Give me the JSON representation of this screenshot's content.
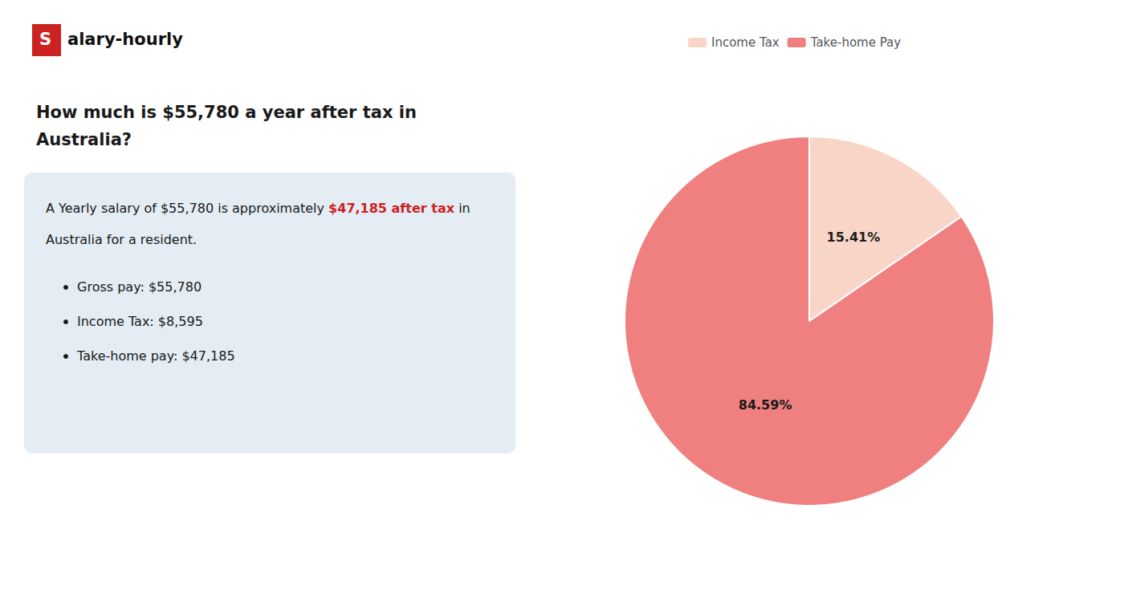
{
  "chart_data": {
    "type": "pie",
    "title": "How much is $55,780 a year after tax in\nAustralia?",
    "categories": [
      "Income Tax",
      "Take-home Pay"
    ],
    "values": [
      15.41,
      84.59
    ],
    "value_labels": [
      "15.41%",
      "84.59%"
    ],
    "colors": [
      "#f9d5c8",
      "#f08080"
    ],
    "data_labels": true,
    "legend": "top",
    "annotations": [
      {
        "text": "S",
        "color": "#cc2222"
      },
      {
        "text": "alary-hourly"
      },
      {
        "text": "A Yearly salary of $55,780 is approximately "
      },
      {
        "text": "$47,185 after tax",
        "color": "#cc2222"
      },
      {
        "text": " in"
      },
      {
        "text": "Australia for a resident."
      },
      {
        "text": "Gross pay: $55,780"
      },
      {
        "text": "Income Tax: $8,595"
      },
      {
        "text": "Take-home pay: $47,185"
      }
    ]
  }
}
